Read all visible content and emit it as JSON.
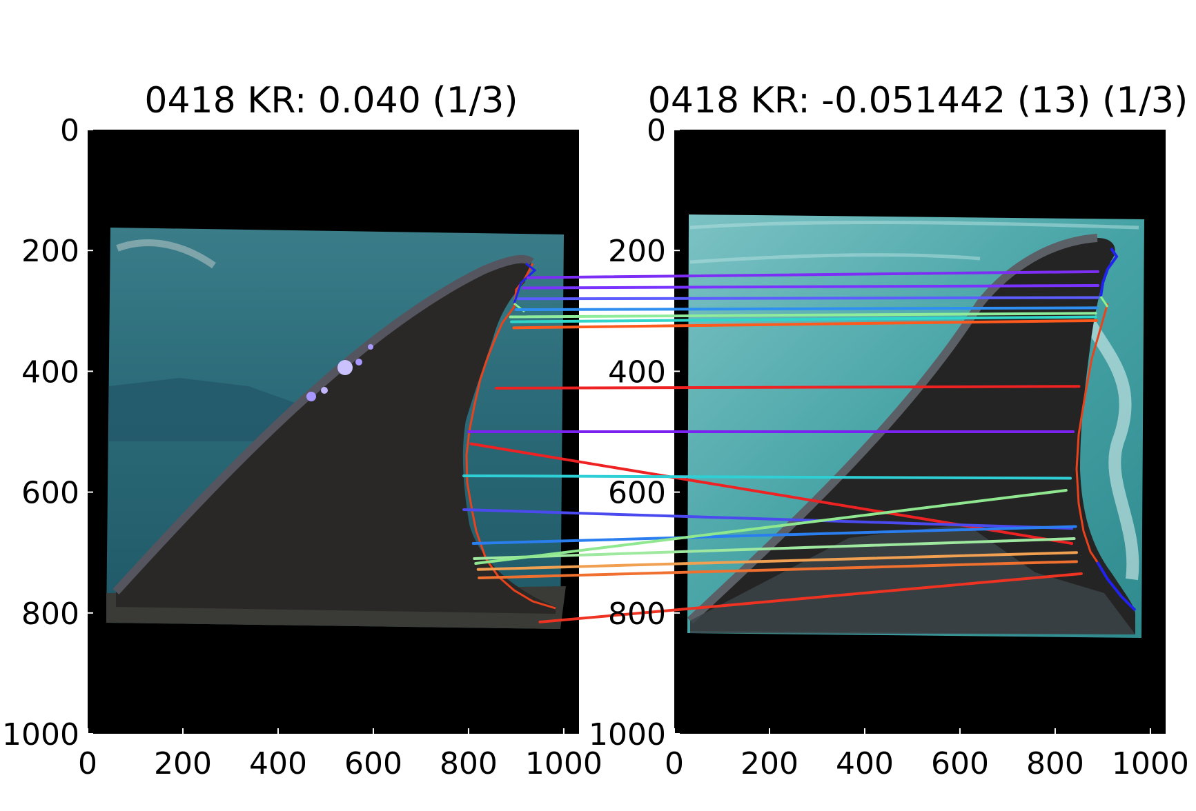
{
  "figure": {
    "panels": [
      {
        "title": "0418 KR: 0.040 (1/3)",
        "x_ticks": [
          "0",
          "200",
          "400",
          "600",
          "800",
          "1000"
        ],
        "y_ticks": [
          "0",
          "200",
          "400",
          "600",
          "800",
          "1000"
        ],
        "image_subject": "dorsal fin photo (left)"
      },
      {
        "title": "0418 KR: -0.051442 (13) (1/3)",
        "x_ticks": [
          "0",
          "200",
          "400",
          "600",
          "800",
          "1000"
        ],
        "y_ticks": [
          "0",
          "200",
          "400",
          "600",
          "800",
          "1000"
        ],
        "image_subject": "dorsal fin photo (right)"
      }
    ],
    "colors": {
      "background": "#000000",
      "left_water": "#2f6f7c",
      "right_water": "#4d9fa3",
      "fin": "#262626",
      "edge_trace": "#e8431d",
      "edge_tip": "#2222ee",
      "notch_highlight": "#9d8cff"
    },
    "match_lines": [
      {
        "left": [
          925,
          245
        ],
        "right": [
          890,
          235
        ],
        "color": "#7d2ef5"
      },
      {
        "left": [
          915,
          262
        ],
        "right": [
          890,
          258
        ],
        "color": "#7a33ff"
      },
      {
        "left": [
          905,
          280
        ],
        "right": [
          890,
          278
        ],
        "color": "#5c5cff"
      },
      {
        "left": [
          900,
          298
        ],
        "right": [
          888,
          295
        ],
        "color": "#2f8ff0"
      },
      {
        "left": [
          888,
          310
        ],
        "right": [
          885,
          304
        ],
        "color": "#8fec9a"
      },
      {
        "left": [
          890,
          318
        ],
        "right": [
          885,
          310
        ],
        "color": "#2fd6c9"
      },
      {
        "left": [
          895,
          328
        ],
        "right": [
          887,
          316
        ],
        "color": "#ff5a1e"
      },
      {
        "left": [
          858,
          428
        ],
        "right": [
          850,
          425
        ],
        "color": "#ee2222"
      },
      {
        "left": [
          800,
          500
        ],
        "right": [
          838,
          500
        ],
        "color": "#7a22f0"
      },
      {
        "left": [
          805,
          520
        ],
        "right": [
          835,
          685
        ],
        "color": "#ee2222"
      },
      {
        "left": [
          790,
          573
        ],
        "right": [
          832,
          577
        ],
        "color": "#2fcfd6"
      },
      {
        "left": [
          790,
          629
        ],
        "right": [
          835,
          660
        ],
        "color": "#4a4aef"
      },
      {
        "left": [
          810,
          685
        ],
        "right": [
          843,
          657
        ],
        "color": "#2a7ef0"
      },
      {
        "left": [
          812,
          710
        ],
        "right": [
          840,
          677
        ],
        "color": "#9fe89f"
      },
      {
        "left": [
          815,
          718
        ],
        "right": [
          823,
          597
        ],
        "color": "#8fe88f"
      },
      {
        "left": [
          820,
          728
        ],
        "right": [
          845,
          700
        ],
        "color": "#f0a050"
      },
      {
        "left": [
          822,
          742
        ],
        "right": [
          845,
          715
        ],
        "color": "#f07030"
      },
      {
        "left": [
          950,
          815
        ],
        "right": [
          855,
          735
        ],
        "color": "#ee3322"
      }
    ]
  }
}
